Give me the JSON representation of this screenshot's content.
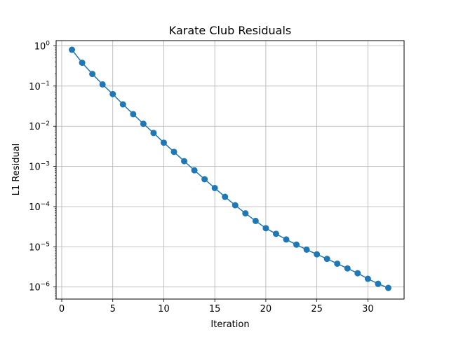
{
  "chart_data": {
    "type": "line",
    "title": "Karate Club Residuals",
    "xlabel": "Iteration",
    "ylabel": "L1 Residual",
    "xlim": [
      -0.55,
      33.55
    ],
    "ylim": [
      5e-07,
      1.35
    ],
    "yscale": "log",
    "grid": true,
    "marker": "circle",
    "series_color": "#1f77b4",
    "x_ticks": [
      0,
      5,
      10,
      15,
      20,
      25,
      30
    ],
    "y_ticks": [
      {
        "value": 1,
        "base": "10",
        "exp": "0"
      },
      {
        "value": 0.1,
        "base": "10",
        "exp": "−1"
      },
      {
        "value": 0.01,
        "base": "10",
        "exp": "−2"
      },
      {
        "value": 0.001,
        "base": "10",
        "exp": "−3"
      },
      {
        "value": 0.0001,
        "base": "10",
        "exp": "−4"
      },
      {
        "value": 1e-05,
        "base": "10",
        "exp": "−5"
      },
      {
        "value": 1e-06,
        "base": "10",
        "exp": "−6"
      }
    ],
    "x": [
      1,
      2,
      3,
      4,
      5,
      6,
      7,
      8,
      9,
      10,
      11,
      12,
      13,
      14,
      15,
      16,
      17,
      18,
      19,
      20,
      21,
      22,
      23,
      24,
      25,
      26,
      27,
      28,
      29,
      30,
      31,
      32
    ],
    "series": [
      {
        "values": [
          0.8,
          0.38,
          0.2,
          0.11,
          0.063,
          0.035,
          0.02,
          0.0115,
          0.0068,
          0.0039,
          0.0023,
          0.00135,
          0.0008,
          0.00048,
          0.00029,
          0.000175,
          0.000108,
          6.8e-05,
          4.4e-05,
          2.9e-05,
          2.1e-05,
          1.52e-05,
          1.13e-05,
          8.5e-06,
          6.5e-06,
          5e-06,
          3.8e-06,
          2.9e-06,
          2.2e-06,
          1.6e-06,
          1.2e-06,
          9.5e-07
        ]
      }
    ]
  }
}
